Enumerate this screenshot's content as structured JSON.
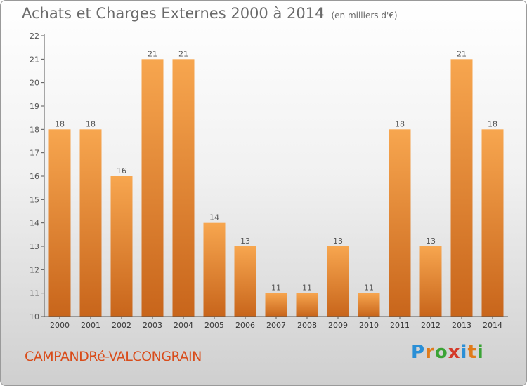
{
  "header": {
    "title": "Achats et Charges Externes 2000 à 2014",
    "unit": "(en milliers d'€)"
  },
  "footer": {
    "commune": "CAMPANDRé-VALCONGRAIN",
    "brand": "Proxiti"
  },
  "colors": {
    "bar_light": "#f7a64f",
    "bar_dark": "#c8651b",
    "commune_text": "#d94c1a"
  },
  "chart_data": {
    "type": "bar",
    "title": "Achats et Charges Externes 2000 à 2014",
    "subtitle": "(en milliers d'€)",
    "xlabel": "",
    "ylabel": "",
    "categories": [
      "2000",
      "2001",
      "2002",
      "2003",
      "2004",
      "2005",
      "2006",
      "2007",
      "2008",
      "2009",
      "2010",
      "2011",
      "2012",
      "2013",
      "2014"
    ],
    "values": [
      18,
      18,
      16,
      21,
      21,
      14,
      13,
      11,
      11,
      13,
      11,
      18,
      13,
      21,
      18
    ],
    "ylim": [
      10,
      22
    ],
    "yticks": [
      10,
      11,
      12,
      13,
      14,
      15,
      16,
      17,
      18,
      19,
      20,
      21,
      22
    ],
    "grid": false,
    "legend": "none"
  }
}
